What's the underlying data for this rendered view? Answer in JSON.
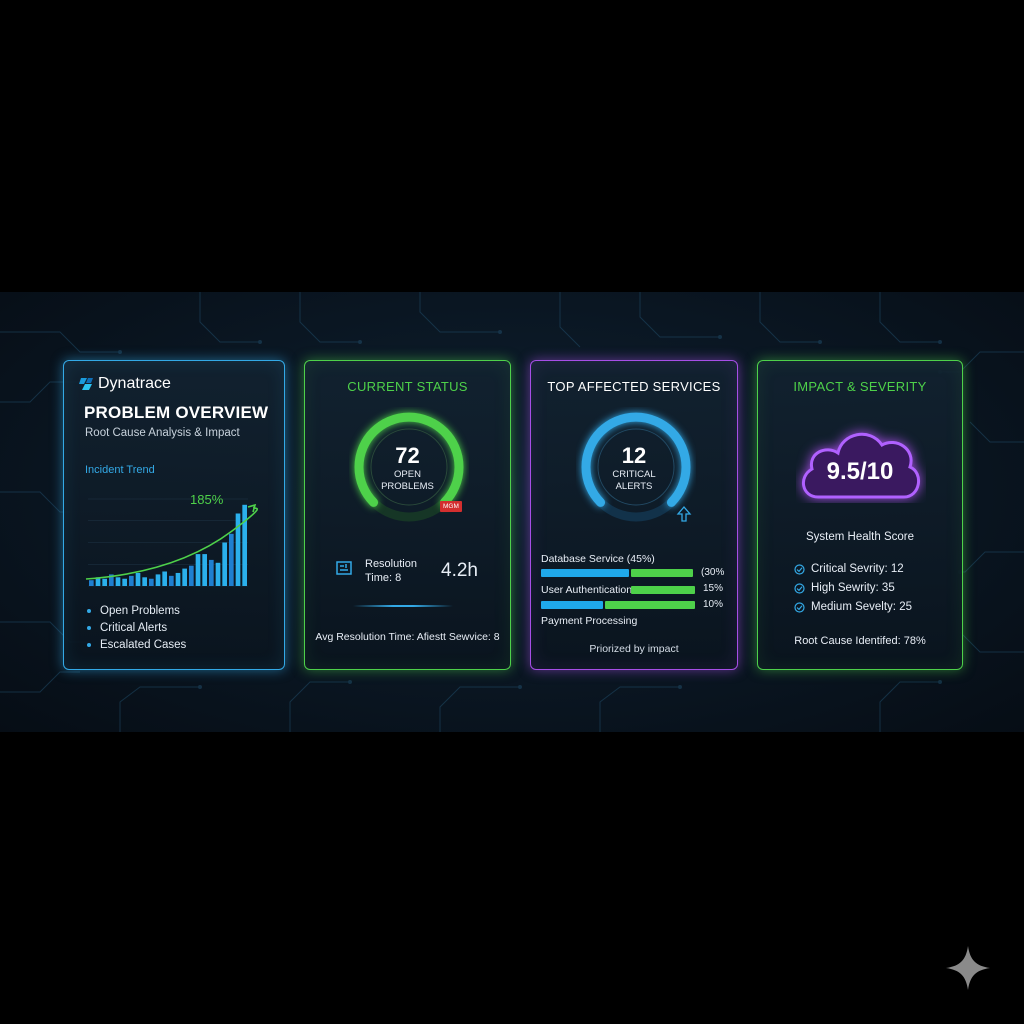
{
  "panel1": {
    "brand": "Dynatrace",
    "title": "PROBLEM OVERVIEW",
    "subtitle": "Root Cause Analysis & Impact",
    "trend_label": "Incident Trend",
    "trend_pct": "185%",
    "legend": [
      "Open Problems",
      "Critical Alerts",
      "Escalated Cases"
    ]
  },
  "panel2": {
    "title": "CURRENT STATUS",
    "gauge_value": "72",
    "gauge_caption_1": "OPEN",
    "gauge_caption_2": "PROBLEMS",
    "badge": "MGM",
    "resolution_label_1": "Resolution",
    "resolution_label_2": "Time: 8",
    "resolution_value": "4.2h",
    "footer": "Avg Resolution Time: Afiestt Sewvice: 8"
  },
  "panel3": {
    "title": "TOP AFFECTED SERVICES",
    "gauge_value": "12",
    "gauge_caption_1": "CRITICAL",
    "gauge_caption_2": "ALERTS",
    "services": [
      {
        "name": "Database Service (45%)",
        "pct": "(30%"
      },
      {
        "name": "User Authentication",
        "pct": "15%"
      },
      {
        "name": "",
        "pct": "10%"
      },
      {
        "name": "Payment Processing",
        "pct": ""
      }
    ],
    "footer": "Priorized by impact"
  },
  "panel4": {
    "title": "IMPACT & SEVERITY",
    "score": "9.5/10",
    "score_label": "System Health Score",
    "severities": [
      "Critical Sevrity: 12",
      "High Sewrity: 35",
      "Medium Sevelty: 25"
    ],
    "footer": "Root Cause Identifed: 78%"
  },
  "chart_data": {
    "type": "bar",
    "title": "Incident Trend",
    "annotation": "185%",
    "values": [
      4,
      6,
      5,
      8,
      6,
      5,
      7,
      9,
      6,
      5,
      8,
      10,
      7,
      9,
      12,
      14,
      22,
      22,
      18,
      16,
      30,
      36,
      50,
      56
    ]
  },
  "colors": {
    "blue": "#33a9e6",
    "green": "#4ed14a",
    "purple": "#a64ee6",
    "red": "#d32f2f"
  }
}
